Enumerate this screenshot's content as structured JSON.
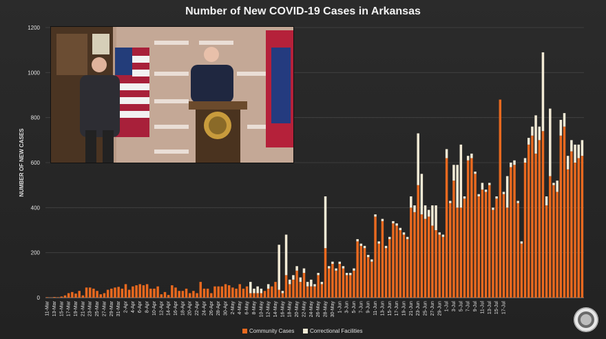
{
  "chart_data": {
    "type": "bar",
    "stacked": true,
    "title": "Number of New COVID-19 Cases in Arkansas",
    "ylabel": "NUMBER OF NEW CASES",
    "xlabel": "",
    "ylim": [
      0,
      1200
    ],
    "yticks": [
      0,
      200,
      400,
      600,
      800,
      1000,
      1200
    ],
    "grid": true,
    "legend_position": "bottom",
    "start_date": "2020-03-11",
    "tick_labels": [
      "11-Mar",
      "13-Mar",
      "15-Mar",
      "17-Mar",
      "19-Mar",
      "21-Mar",
      "23-Mar",
      "25-Mar",
      "27-Mar",
      "29-Mar",
      "31-Mar",
      "2-Apr",
      "4-Apr",
      "6-Apr",
      "8-Apr",
      "10-Apr",
      "12-Apr",
      "14-Apr",
      "16-Apr",
      "18-Apr",
      "20-Apr",
      "22-Apr",
      "24-Apr",
      "26-Apr",
      "28-Apr",
      "30-Apr",
      "2-May",
      "4-May",
      "6-May",
      "8-May",
      "10-May",
      "12-May",
      "14-May",
      "16-May",
      "18-May",
      "20-May",
      "22-May",
      "24-May",
      "26-May",
      "28-May",
      "30-May",
      "1-Jun",
      "3-Jun",
      "5-Jun",
      "7-Jun",
      "9-Jun",
      "11-Jun",
      "13-Jun",
      "15-Jun",
      "17-Jun",
      "19-Jun",
      "21-Jun",
      "23-Jun",
      "25-Jun",
      "27-Jun",
      "29-Jun",
      "1-Jul",
      "3-Jul",
      "5-Jul",
      "7-Jul",
      "9-Jul",
      "11-Jul",
      "13-Jul",
      "15-Jul",
      "17-Jul"
    ],
    "series": [
      {
        "name": "Community Cases",
        "color": "#e8691f",
        "values": [
          2,
          1,
          3,
          2,
          5,
          10,
          20,
          25,
          18,
          30,
          10,
          45,
          45,
          40,
          30,
          15,
          20,
          35,
          40,
          45,
          48,
          40,
          60,
          35,
          50,
          55,
          60,
          55,
          60,
          40,
          40,
          50,
          15,
          25,
          12,
          55,
          45,
          30,
          30,
          40,
          20,
          30,
          20,
          70,
          40,
          40,
          20,
          50,
          50,
          50,
          60,
          55,
          45,
          40,
          60,
          40,
          50,
          20,
          20,
          20,
          20,
          30,
          40,
          50,
          70,
          35,
          20,
          100,
          60,
          80,
          120,
          70,
          110,
          50,
          50,
          50,
          100,
          60,
          220,
          130,
          150,
          120,
          150,
          130,
          100,
          100,
          120,
          250,
          230,
          220,
          180,
          160,
          360,
          240,
          340,
          220,
          260,
          330,
          320,
          300,
          280,
          260,
          400,
          380,
          500,
          370,
          350,
          360,
          320,
          300,
          280,
          270,
          620,
          420,
          520,
          400,
          400,
          440,
          610,
          620,
          550,
          450,
          480,
          470,
          500,
          390,
          440,
          880,
          460,
          400,
          580,
          590,
          420,
          240,
          600,
          680,
          720,
          640,
          700,
          740,
          410,
          540,
          500,
          470,
          720,
          760,
          570,
          650,
          600,
          620,
          630
        ]
      },
      {
        "name": "Correctional Facilities",
        "color": "#f2ead5",
        "values": [
          0,
          0,
          0,
          0,
          0,
          0,
          0,
          0,
          0,
          0,
          0,
          0,
          0,
          0,
          0,
          0,
          0,
          0,
          0,
          0,
          0,
          0,
          0,
          0,
          0,
          0,
          0,
          0,
          0,
          0,
          0,
          0,
          0,
          0,
          0,
          0,
          0,
          0,
          0,
          0,
          0,
          0,
          0,
          0,
          0,
          0,
          0,
          0,
          0,
          0,
          0,
          0,
          0,
          0,
          0,
          0,
          0,
          50,
          20,
          30,
          20,
          0,
          20,
          0,
          0,
          200,
          10,
          180,
          20,
          20,
          20,
          20,
          20,
          20,
          30,
          10,
          10,
          10,
          230,
          10,
          10,
          10,
          10,
          10,
          10,
          10,
          10,
          10,
          10,
          10,
          10,
          10,
          10,
          10,
          10,
          10,
          10,
          10,
          10,
          10,
          10,
          10,
          50,
          30,
          230,
          180,
          60,
          30,
          90,
          110,
          10,
          10,
          40,
          10,
          70,
          190,
          280,
          10,
          20,
          20,
          10,
          10,
          30,
          10,
          10,
          10,
          10,
          0,
          10,
          140,
          20,
          20,
          10,
          10,
          20,
          30,
          40,
          170,
          60,
          350,
          40,
          300,
          10,
          50,
          70,
          60,
          60,
          50,
          80,
          60,
          70
        ]
      }
    ]
  }
}
